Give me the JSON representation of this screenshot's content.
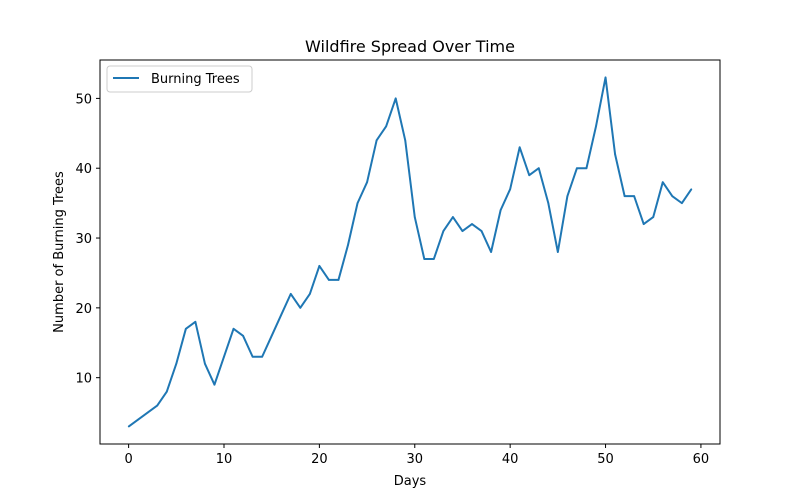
{
  "chart_data": {
    "type": "line",
    "title": "Wildfire Spread Over Time",
    "xlabel": "Days",
    "ylabel": "Number of Burning Trees",
    "xlim": [
      -3,
      62
    ],
    "ylim": [
      0.5,
      55.5
    ],
    "xticks": [
      0,
      10,
      20,
      30,
      40,
      50,
      60
    ],
    "yticks": [
      10,
      20,
      30,
      40,
      50
    ],
    "grid": false,
    "legend_position": "top-left",
    "series": [
      {
        "name": "Burning Trees",
        "color": "#1f77b4",
        "x": [
          0,
          1,
          2,
          3,
          4,
          5,
          6,
          7,
          8,
          9,
          10,
          11,
          12,
          13,
          14,
          15,
          16,
          17,
          18,
          19,
          20,
          21,
          22,
          23,
          24,
          25,
          26,
          27,
          28,
          29,
          30,
          31,
          32,
          33,
          34,
          35,
          36,
          37,
          38,
          39,
          40,
          41,
          42,
          43,
          44,
          45,
          46,
          47,
          48,
          49,
          50,
          51,
          52,
          53,
          54,
          55,
          56,
          57,
          58,
          59
        ],
        "y": [
          3,
          4,
          5,
          6,
          8,
          12,
          17,
          18,
          12,
          9,
          13,
          17,
          16,
          13,
          13,
          16,
          19,
          22,
          20,
          22,
          26,
          24,
          24,
          29,
          35,
          38,
          44,
          46,
          50,
          44,
          33,
          27,
          27,
          31,
          33,
          31,
          32,
          31,
          28,
          34,
          37,
          43,
          39,
          40,
          35,
          28,
          36,
          40,
          40,
          46,
          53,
          42,
          36,
          36,
          32,
          33,
          38,
          36,
          35,
          37
        ]
      }
    ]
  }
}
